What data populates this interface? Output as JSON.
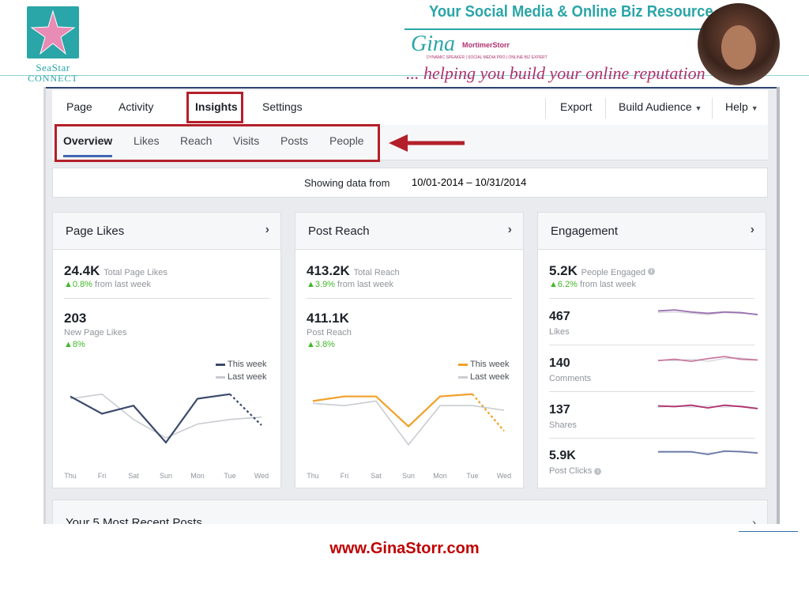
{
  "brand": {
    "logo_line1": "SeaStar",
    "logo_line2": "CONNECT",
    "title": "Your Social Media & Online Biz Resource",
    "script_name": "Gina",
    "name": "MortimerStorr",
    "subtitle": "DYNAMIC SPEAKER | SOCIAL MEDIA PRO | ONLINE BIZ EXPERT",
    "tagline": "... helping you build your online reputation",
    "colors": {
      "teal": "#2aa5a8",
      "magenta": "#b0306e",
      "highlight": "#b3202a"
    }
  },
  "nav": {
    "tabs": [
      "Page",
      "Activity",
      "Insights",
      "Settings"
    ],
    "active_tab": "Insights",
    "right": [
      "Export",
      "Build Audience",
      "Help"
    ]
  },
  "subnav": {
    "tabs": [
      "Overview",
      "Likes",
      "Reach",
      "Visits",
      "Posts",
      "People"
    ],
    "active": "Overview"
  },
  "daterange": {
    "label": "Showing data from",
    "range": "10/01-2014 – 10/31/2014"
  },
  "cards": {
    "page_likes": {
      "title": "Page Likes",
      "total_value": "24.4K",
      "total_label": "Total Page Likes",
      "total_change": "0.8%",
      "total_change_suffix": "from last week",
      "new_value": "203",
      "new_label": "New Page Likes",
      "new_change": "8%",
      "legend_this": "This week",
      "legend_last": "Last week"
    },
    "post_reach": {
      "title": "Post Reach",
      "total_value": "413.2K",
      "total_label": "Total Reach",
      "total_change": "3.9%",
      "total_change_suffix": "from last week",
      "reach_value": "411.1K",
      "reach_label": "Post Reach",
      "reach_change": "3.8%",
      "legend_this": "This week",
      "legend_last": "Last week"
    },
    "engagement": {
      "title": "Engagement",
      "total_value": "5.2K",
      "total_label": "People Engaged",
      "total_change": "6.2%",
      "total_change_suffix": "from last week",
      "metrics": [
        {
          "value": "467",
          "label": "Likes"
        },
        {
          "value": "140",
          "label": "Comments"
        },
        {
          "value": "137",
          "label": "Shares"
        },
        {
          "value": "5.9K",
          "label": "Post Clicks"
        }
      ]
    }
  },
  "days": [
    "Thu",
    "Fri",
    "Sat",
    "Sun",
    "Mon",
    "Tue",
    "Wed"
  ],
  "chart_data": [
    {
      "type": "line",
      "x": [
        "Thu",
        "Fri",
        "Sat",
        "Sun",
        "Mon",
        "Tue",
        "Wed"
      ],
      "series": [
        {
          "name": "This week",
          "color": "#3b4a6b",
          "values": [
            60,
            45,
            52,
            20,
            58,
            62,
            35
          ]
        },
        {
          "name": "Last week",
          "color": "#c9ccd1",
          "values": [
            58,
            62,
            40,
            24,
            36,
            40,
            42
          ]
        }
      ]
    },
    {
      "type": "line",
      "x": [
        "Thu",
        "Fri",
        "Sat",
        "Sun",
        "Mon",
        "Tue",
        "Wed"
      ],
      "series": [
        {
          "name": "This week",
          "color": "#f2a02a",
          "values": [
            56,
            60,
            60,
            34,
            60,
            62,
            30
          ]
        },
        {
          "name": "Last week",
          "color": "#c9ccd1",
          "values": [
            54,
            52,
            56,
            18,
            52,
            52,
            48
          ]
        }
      ]
    }
  ],
  "sparklines": [
    {
      "color": "#9a6fb0",
      "values": [
        55,
        58,
        52,
        48,
        52,
        50,
        44
      ],
      "last": [
        50,
        52,
        48,
        44,
        50,
        48,
        46
      ]
    },
    {
      "color": "#c87aa0",
      "values": [
        46,
        50,
        44,
        52,
        58,
        50,
        48
      ],
      "last": [
        48,
        46,
        50,
        44,
        52,
        54,
        48
      ]
    },
    {
      "color": "#b0306e",
      "values": [
        50,
        48,
        52,
        44,
        52,
        48,
        42
      ],
      "last": [
        46,
        50,
        46,
        50,
        46,
        50,
        44
      ]
    },
    {
      "color": "#6a7aa8",
      "values": [
        50,
        50,
        50,
        42,
        52,
        50,
        46
      ],
      "last": [
        48,
        48,
        48,
        46,
        50,
        52,
        48
      ]
    }
  ],
  "recent": {
    "title": "Your 5 Most Recent Posts"
  },
  "footer": {
    "url": "www.GinaStorr.com"
  }
}
